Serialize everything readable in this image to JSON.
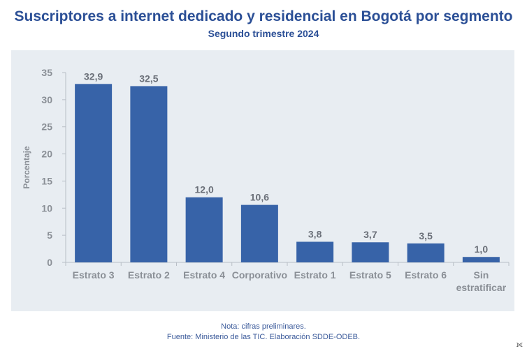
{
  "title": "Suscriptores a internet dedicado y residencial en Bogotá por segmento",
  "subtitle": "Segundo trimestre 2024",
  "notes": {
    "note": "Nota: cifras preliminares.",
    "source": "Fuente: Ministerio de las TIC. Elaboración SDDE-ODEB."
  },
  "colors": {
    "bar": "#3763a8",
    "axis_text": "#8a8f96",
    "label_text": "#6b7079",
    "panel": "#e8edf2",
    "title": "#2b4f96"
  },
  "chart_data": {
    "type": "bar",
    "categories": [
      [
        "Estrato 3"
      ],
      [
        "Estrato 2"
      ],
      [
        "Estrato 4"
      ],
      [
        "Corporativo"
      ],
      [
        "Estrato 1"
      ],
      [
        "Estrato 5"
      ],
      [
        "Estrato 6"
      ],
      [
        "Sin",
        "estratificar"
      ]
    ],
    "values": [
      32.9,
      32.5,
      12.0,
      10.6,
      3.8,
      3.7,
      3.5,
      1.0
    ],
    "value_labels": [
      "32,9",
      "32,5",
      "12,0",
      "10,6",
      "3,8",
      "3,7",
      "3,5",
      "1,0"
    ],
    "ylabel": "Porcentaje",
    "yticks": [
      "0",
      "5",
      "10",
      "15",
      "20",
      "25",
      "30",
      "35"
    ],
    "ylim": [
      0,
      35
    ],
    "grid": false,
    "legend": "none"
  }
}
